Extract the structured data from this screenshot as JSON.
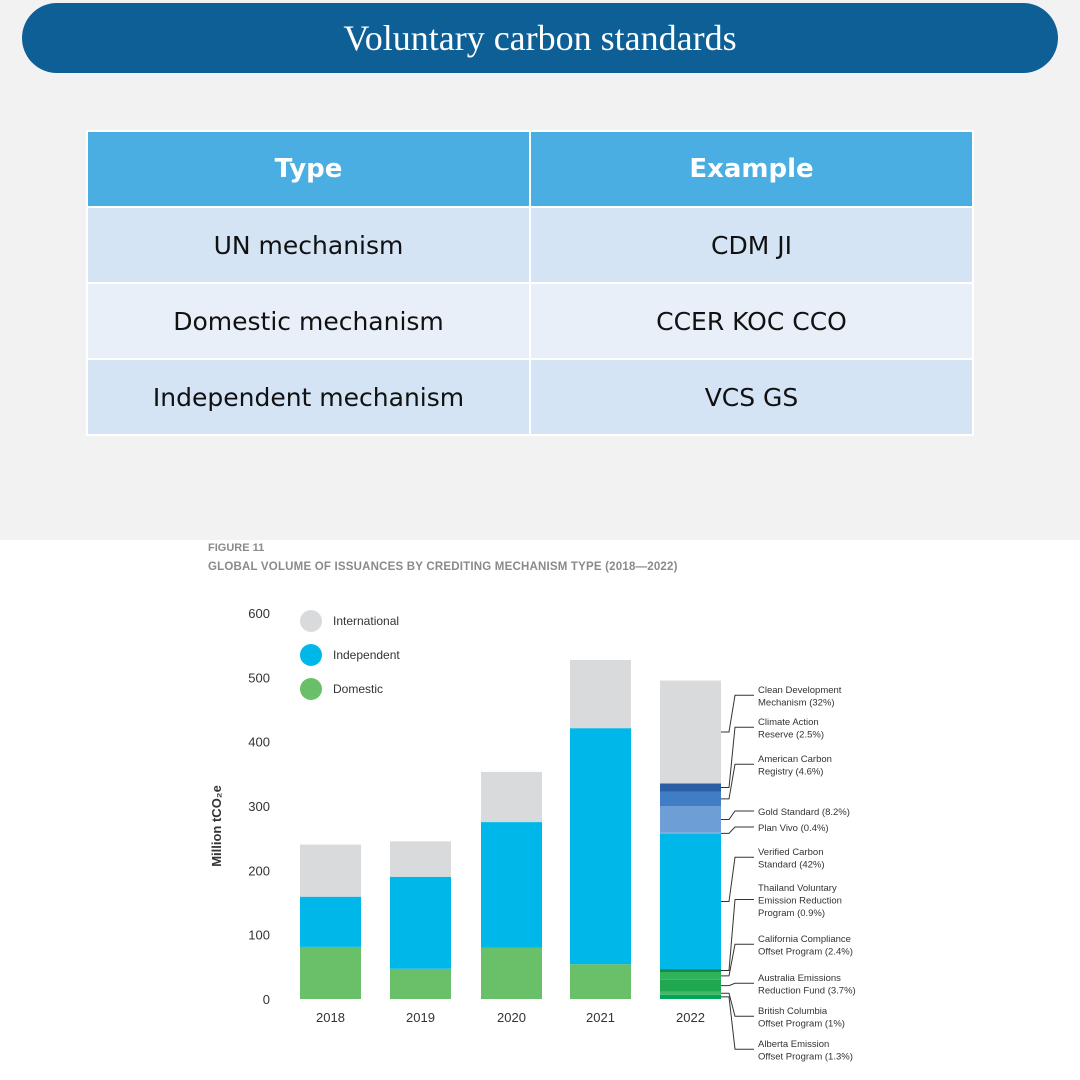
{
  "slide": {
    "title": "Voluntary carbon standards",
    "table": {
      "headers": [
        "Type",
        "Example"
      ],
      "rows": [
        [
          "UN mechanism",
          "CDM  JI"
        ],
        [
          "Domestic mechanism",
          "CCER  KOC CCO"
        ],
        [
          "Independent mechanism",
          "VCS  GS"
        ]
      ]
    }
  },
  "figure": {
    "label": "FIGURE 11",
    "title": "GLOBAL VOLUME OF ISSUANCES BY CREDITING MECHANISM TYPE (2018—2022)"
  },
  "chart_data": {
    "type": "bar",
    "stacked": true,
    "categories": [
      "2018",
      "2019",
      "2020",
      "2021",
      "2022"
    ],
    "ylabel": "Million tCO₂e",
    "ylim": [
      0,
      600
    ],
    "yticks": [
      0,
      100,
      200,
      300,
      400,
      500,
      600
    ],
    "legend_position": "top-left",
    "series": [
      {
        "name": "Domestic",
        "color": "#6abf69",
        "values": [
          81,
          47,
          80,
          54,
          57
        ]
      },
      {
        "name": "Independent",
        "color": "#00b7ea",
        "values": [
          78,
          143,
          195,
          367,
          283
        ]
      },
      {
        "name": "International",
        "color": "#d9dadc",
        "values": [
          81,
          55,
          78,
          106,
          157
        ]
      }
    ],
    "breakdown_2022": [
      {
        "label": "Alberta Emission Offset Program (1.3%)",
        "value": 6.5,
        "color": "#00a651"
      },
      {
        "label": "British Columbia Offset Program (1%)",
        "value": 5,
        "color": "#3fb968"
      },
      {
        "label": "Australia Emissions Reduction Fund (3.7%)",
        "value": 18.5,
        "color": "#1fa84f"
      },
      {
        "label": "California Compliance Offset Program (2.4%)",
        "value": 12,
        "color": "#2eb35a"
      },
      {
        "label": "Thailand Voluntary Emission Reduction Program (0.9%)",
        "value": 4.5,
        "color": "#178a45"
      },
      {
        "label": "Verified Carbon Standard (42%)",
        "value": 210,
        "color": "#00b7ea"
      },
      {
        "label": "Plan Vivo (0.4%)",
        "value": 2,
        "color": "#7eaad6"
      },
      {
        "label": "Gold Standard (8.2%)",
        "value": 41,
        "color": "#6d9ed6"
      },
      {
        "label": "American Carbon Registry (4.6%)",
        "value": 23,
        "color": "#3f7ec4"
      },
      {
        "label": "Climate Action Reserve (2.5%)",
        "value": 12.5,
        "color": "#2c5ea5"
      },
      {
        "label": "Clean Development Mechanism (32%)",
        "value": 160,
        "color": "#d9dadc"
      }
    ],
    "annotations_2022": [
      {
        "lines": [
          "Clean Development",
          "Mechanism (32%)"
        ],
        "segment": 10
      },
      {
        "lines": [
          "Climate Action",
          "Reserve (2.5%)"
        ],
        "segment": 9
      },
      {
        "lines": [
          "American Carbon",
          "Registry (4.6%)"
        ],
        "segment": 8
      },
      {
        "lines": [
          "Gold Standard (8.2%)"
        ],
        "segment": 7
      },
      {
        "lines": [
          "Plan Vivo (0.4%)"
        ],
        "segment": 6
      },
      {
        "lines": [
          "Verified Carbon",
          "Standard (42%)"
        ],
        "segment": 5
      },
      {
        "lines": [
          "Thailand Voluntary",
          "Emission Reduction",
          "Program (0.9%)"
        ],
        "segment": 4
      },
      {
        "lines": [
          "California Compliance",
          "Offset Program (2.4%)"
        ],
        "segment": 3
      },
      {
        "lines": [
          "Australia Emissions",
          "Reduction Fund (3.7%)"
        ],
        "segment": 2
      },
      {
        "lines": [
          "British Columbia",
          "Offset Program (1%)"
        ],
        "segment": 1
      },
      {
        "lines": [
          "Alberta Emission",
          "Offset Program (1.3%)"
        ],
        "segment": 0
      }
    ]
  }
}
